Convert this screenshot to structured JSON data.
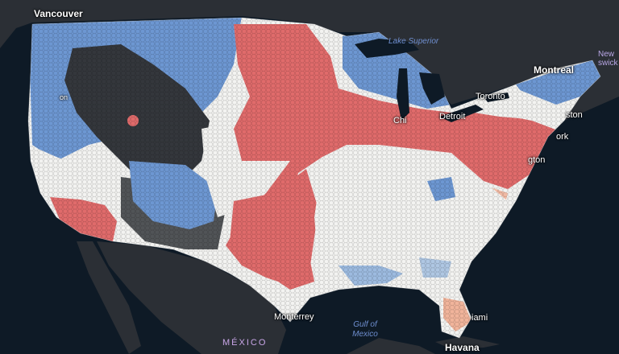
{
  "map": {
    "colors": {
      "ocean": "#0e1a26",
      "land": "#2b2f35",
      "hot": "#e06b6b",
      "warm": "#f1b49b",
      "neutral": "#f3f3f1",
      "cool": "#9dbbe0",
      "cold": "#6d97d2",
      "nodata": "#34373c"
    },
    "labels": {
      "vancouver": "Vancouver",
      "lake_superior": "Lake Superior",
      "montreal": "Montreal",
      "toronto": "Toronto",
      "detroit": "Detroit",
      "chicago": "Chi",
      "boston": "ston",
      "newyork": "ork",
      "washington": "gton",
      "new_brunswick": "New\nswick",
      "miami": "iami",
      "havana": "Havana",
      "monterrey": "Monterrey",
      "gulf": "Gulf of\nMexico",
      "mexico": "MÉXICO",
      "portland": "on"
    }
  }
}
